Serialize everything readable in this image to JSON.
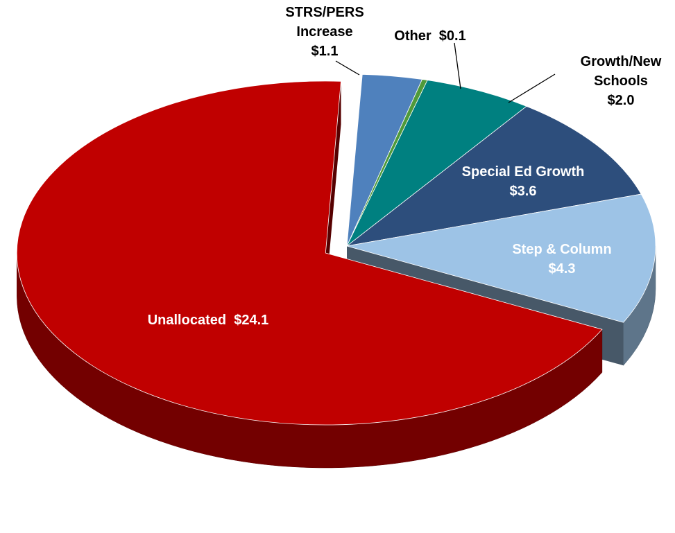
{
  "chart_data": {
    "type": "pie",
    "categories": [
      "STRS/PERS Increase",
      "Other",
      "Growth/New Schools",
      "Special Ed Growth",
      "Step & Column",
      "Unallocated"
    ],
    "values": [
      1.1,
      0.1,
      2.0,
      3.6,
      4.3,
      24.1
    ],
    "value_labels": [
      "$1.1",
      "$0.1",
      "$2.0",
      "$3.6",
      "$4.3",
      "$24.1"
    ],
    "colors": [
      "#4f81bd",
      "#4f9a3a",
      "#008080",
      "#2d4e7c",
      "#9dc3e6",
      "#c00000"
    ],
    "exploded": "Unallocated"
  }
}
